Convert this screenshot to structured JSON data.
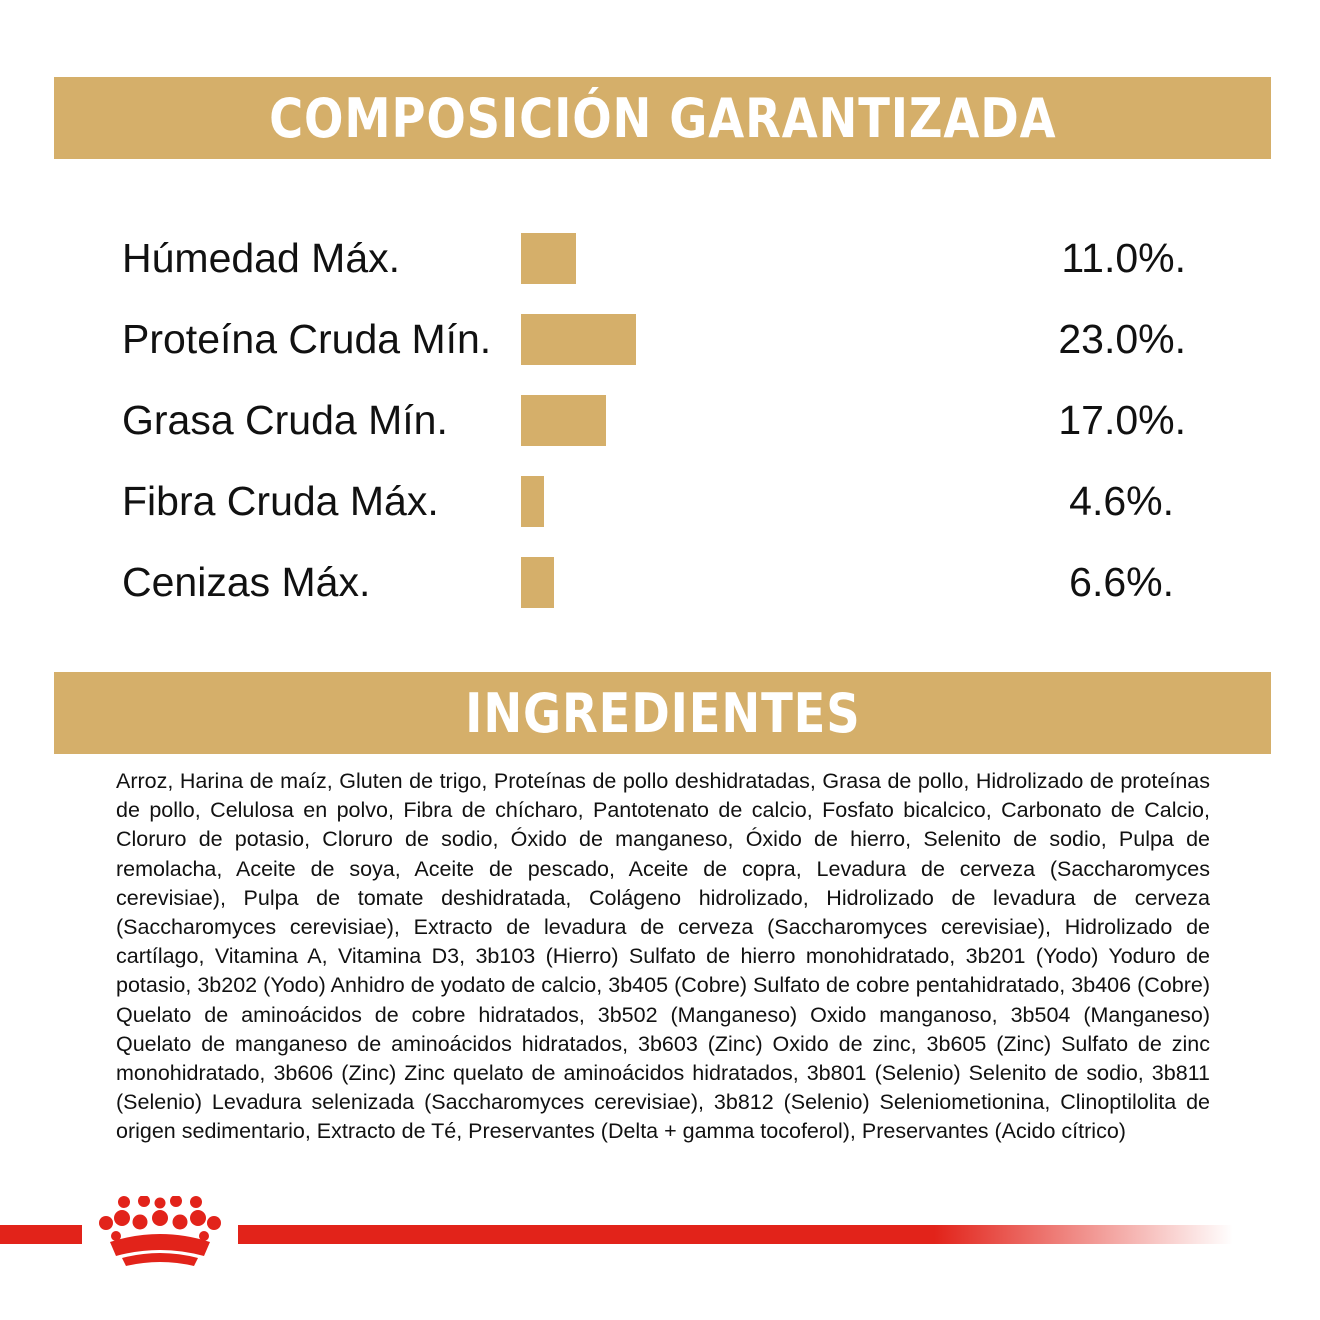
{
  "composition": {
    "title": "COMPOSICIÓN GARANTIZADA",
    "bar_color": "#d5af6a"
  },
  "chart_data": {
    "type": "bar",
    "orientation": "horizontal",
    "categories": [
      "Húmedad Máx.",
      "Proteína Cruda Mín.",
      "Grasa Cruda Mín.",
      "Fibra Cruda Máx.",
      "Cenizas Máx."
    ],
    "values": [
      11.0,
      23.0,
      17.0,
      4.6,
      6.6
    ],
    "value_labels": [
      "11.0%.",
      "23.0%.",
      "17.0%.",
      "4.6%.",
      "6.6%."
    ],
    "grid": false
  },
  "ingredients": {
    "title": "INGREDIENTES",
    "text": "Arroz, Harina de maíz, Gluten de trigo, Proteínas de pollo deshidratadas, Grasa de pollo, Hidrolizado de proteínas de pollo, Celulosa en polvo, Fibra de chícharo, Pantotenato de calcio, Fosfato bicalcico, Carbonato de Calcio, Cloruro de potasio, Cloruro de sodio, Óxido de manganeso, Óxido de hierro, Selenito de sodio, Pulpa de remolacha, Aceite de soya, Aceite de pescado, Aceite de copra, Levadura de cerveza (Saccharomyces cerevisiae), Pulpa de tomate deshidratada, Colágeno hidrolizado, Hidrolizado de levadura de cerveza (Saccharomyces cerevisiae), Extracto de levadura de cerveza (Saccharomyces cerevisiae), Hidrolizado de cartílago, Vitamina A, Vitamina D3, 3b103 (Hierro) Sulfato de hierro monohidratado, 3b201 (Yodo) Yoduro de potasio, 3b202 (Yodo) Anhidro de yodato de calcio, 3b405 (Cobre) Sulfato de cobre pentahidratado, 3b406 (Cobre) Quelato de aminoácidos de cobre hidratados, 3b502 (Manganeso) Oxido manganoso, 3b504 (Manganeso) Quelato de manganeso de aminoácidos hidratados, 3b603 (Zinc) Oxido de zinc, 3b605 (Zinc) Sulfato de zinc monohidratado, 3b606 (Zinc) Zinc quelato de aminoácidos hidratados, 3b801 (Selenio) Selenito de sodio, 3b811 (Selenio) Levadura selenizada (Saccharomyces cerevisiae), 3b812 (Selenio) Seleniometionina, Clinoptilolita de origen sedimentario, Extracto de Té, Preservantes (Delta + gamma tocoferol), Preservantes (Acido cítrico)"
  },
  "footer": {
    "logo_icon": "royal-canin-crown-icon",
    "line_color": "#e2231a"
  }
}
